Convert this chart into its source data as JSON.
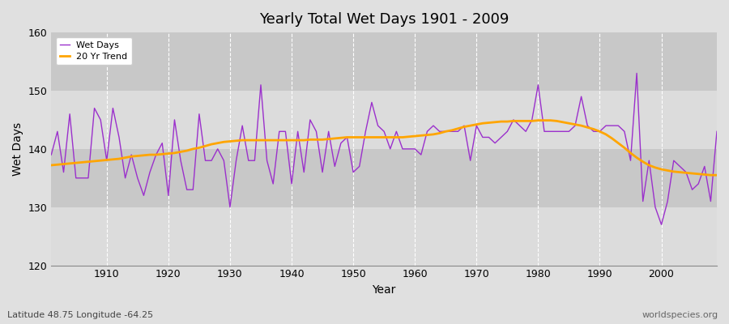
{
  "title": "Yearly Total Wet Days 1901 - 2009",
  "xlabel": "Year",
  "ylabel": "Wet Days",
  "subtitle": "Latitude 48.75 Longitude -64.25",
  "watermark": "worldspecies.org",
  "ylim": [
    120,
    160
  ],
  "xlim": [
    1901,
    2009
  ],
  "yticks": [
    120,
    130,
    140,
    150,
    160
  ],
  "xticks": [
    1910,
    1920,
    1930,
    1940,
    1950,
    1960,
    1970,
    1980,
    1990,
    2000
  ],
  "wet_days_color": "#9B30CC",
  "trend_color": "#FFA500",
  "fig_background": "#E0E0E0",
  "plot_background_light": "#DCDCDC",
  "plot_background_dark": "#C8C8C8",
  "legend_labels": [
    "Wet Days",
    "20 Yr Trend"
  ],
  "years": [
    1901,
    1902,
    1903,
    1904,
    1905,
    1906,
    1907,
    1908,
    1909,
    1910,
    1911,
    1912,
    1913,
    1914,
    1915,
    1916,
    1917,
    1918,
    1919,
    1920,
    1921,
    1922,
    1923,
    1924,
    1925,
    1926,
    1927,
    1928,
    1929,
    1930,
    1931,
    1932,
    1933,
    1934,
    1935,
    1936,
    1937,
    1938,
    1939,
    1940,
    1941,
    1942,
    1943,
    1944,
    1945,
    1946,
    1947,
    1948,
    1949,
    1950,
    1951,
    1952,
    1953,
    1954,
    1955,
    1956,
    1957,
    1958,
    1959,
    1960,
    1961,
    1962,
    1963,
    1964,
    1965,
    1966,
    1967,
    1968,
    1969,
    1970,
    1971,
    1972,
    1973,
    1974,
    1975,
    1976,
    1977,
    1978,
    1979,
    1980,
    1981,
    1982,
    1983,
    1984,
    1985,
    1986,
    1987,
    1988,
    1989,
    1990,
    1991,
    1992,
    1993,
    1994,
    1995,
    1996,
    1997,
    1998,
    1999,
    2000,
    2001,
    2002,
    2003,
    2004,
    2005,
    2006,
    2007,
    2008,
    2009
  ],
  "wet_days": [
    139,
    143,
    136,
    146,
    135,
    135,
    135,
    147,
    145,
    138,
    147,
    142,
    135,
    139,
    135,
    132,
    136,
    139,
    141,
    132,
    145,
    138,
    133,
    133,
    146,
    138,
    138,
    140,
    138,
    130,
    138,
    144,
    138,
    138,
    151,
    138,
    134,
    143,
    143,
    134,
    143,
    136,
    145,
    143,
    136,
    143,
    137,
    141,
    142,
    136,
    137,
    143,
    148,
    144,
    143,
    140,
    143,
    140,
    140,
    140,
    139,
    143,
    144,
    143,
    143,
    143,
    143,
    144,
    138,
    144,
    142,
    142,
    141,
    142,
    143,
    145,
    144,
    143,
    145,
    151,
    143,
    143,
    143,
    143,
    143,
    144,
    149,
    144,
    143,
    143,
    144,
    144,
    144,
    143,
    138,
    153,
    131,
    138,
    130,
    127,
    131,
    138,
    137,
    136,
    133,
    134,
    137,
    131,
    143
  ],
  "trend": [
    137.2,
    137.3,
    137.4,
    137.5,
    137.6,
    137.7,
    137.8,
    137.9,
    138.0,
    138.1,
    138.2,
    138.3,
    138.5,
    138.7,
    138.8,
    138.9,
    139.0,
    139.0,
    139.1,
    139.2,
    139.3,
    139.5,
    139.7,
    140.0,
    140.2,
    140.5,
    140.8,
    141.0,
    141.2,
    141.3,
    141.4,
    141.5,
    141.5,
    141.5,
    141.5,
    141.5,
    141.5,
    141.5,
    141.5,
    141.5,
    141.5,
    141.5,
    141.6,
    141.6,
    141.6,
    141.7,
    141.8,
    141.9,
    142.0,
    142.0,
    142.0,
    142.0,
    142.0,
    142.0,
    142.0,
    142.0,
    142.0,
    142.0,
    142.1,
    142.2,
    142.3,
    142.4,
    142.5,
    142.7,
    143.0,
    143.2,
    143.5,
    143.8,
    144.0,
    144.2,
    144.4,
    144.5,
    144.6,
    144.7,
    144.7,
    144.8,
    144.8,
    144.8,
    144.8,
    144.9,
    144.9,
    144.9,
    144.8,
    144.6,
    144.4,
    144.2,
    144.0,
    143.7,
    143.4,
    143.0,
    142.5,
    141.8,
    141.0,
    140.2,
    139.3,
    138.5,
    137.8,
    137.2,
    136.8,
    136.5,
    136.3,
    136.1,
    136.0,
    135.9,
    135.8,
    135.7,
    135.6,
    135.5,
    135.5
  ]
}
